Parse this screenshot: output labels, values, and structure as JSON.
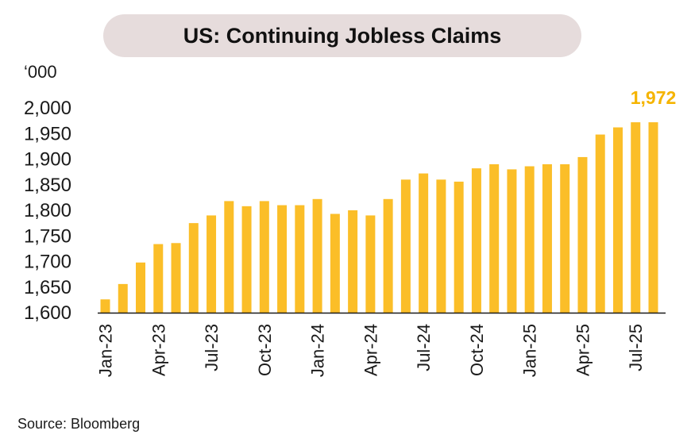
{
  "title": "US: Continuing Jobless Claims",
  "unit_label": "‘000",
  "source": "Source: Bloomberg",
  "colors": {
    "bar": "#fbbe28",
    "label": "#f5b400",
    "pill": "#e6dcdc",
    "axis": "#1a1a1a"
  },
  "chart_data": {
    "type": "bar",
    "title": "US: Continuing Jobless Claims",
    "ylabel": "‘000",
    "ylim": [
      1600,
      2000
    ],
    "yticks": [
      1600,
      1650,
      1700,
      1750,
      1800,
      1850,
      1900,
      1950,
      2000
    ],
    "ytick_labels": [
      "1,600",
      "1,650",
      "1,700",
      "1,750",
      "1,800",
      "1,850",
      "1,900",
      "1,950",
      "2,000"
    ],
    "categories": [
      "Jan-23",
      "Feb-23",
      "Mar-23",
      "Apr-23",
      "May-23",
      "Jun-23",
      "Jul-23",
      "Aug-23",
      "Sep-23",
      "Oct-23",
      "Nov-23",
      "Dec-23",
      "Jan-24",
      "Feb-24",
      "Mar-24",
      "Apr-24",
      "May-24",
      "Jun-24",
      "Jul-24",
      "Aug-24",
      "Sep-24",
      "Oct-24",
      "Nov-24",
      "Dec-24",
      "Jan-25",
      "Feb-25",
      "Mar-25",
      "Apr-25",
      "May-25",
      "Jun-25",
      "Jul-25",
      "Aug-25"
    ],
    "values": [
      1626,
      1656,
      1698,
      1734,
      1736,
      1775,
      1790,
      1818,
      1808,
      1818,
      1810,
      1810,
      1822,
      1793,
      1800,
      1790,
      1822,
      1860,
      1872,
      1860,
      1856,
      1882,
      1890,
      1880,
      1886,
      1890,
      1890,
      1904,
      1948,
      1962,
      1972,
      1972
    ],
    "xtick_labels": [
      "Jan-23",
      "Apr-23",
      "Jul-23",
      "Oct-23",
      "Jan-24",
      "Apr-24",
      "Jul-24",
      "Oct-24",
      "Jan-25",
      "Apr-25",
      "Jul-25"
    ],
    "annotation": {
      "text": "1,972",
      "index": 31
    },
    "grid": false,
    "legend": "none"
  }
}
